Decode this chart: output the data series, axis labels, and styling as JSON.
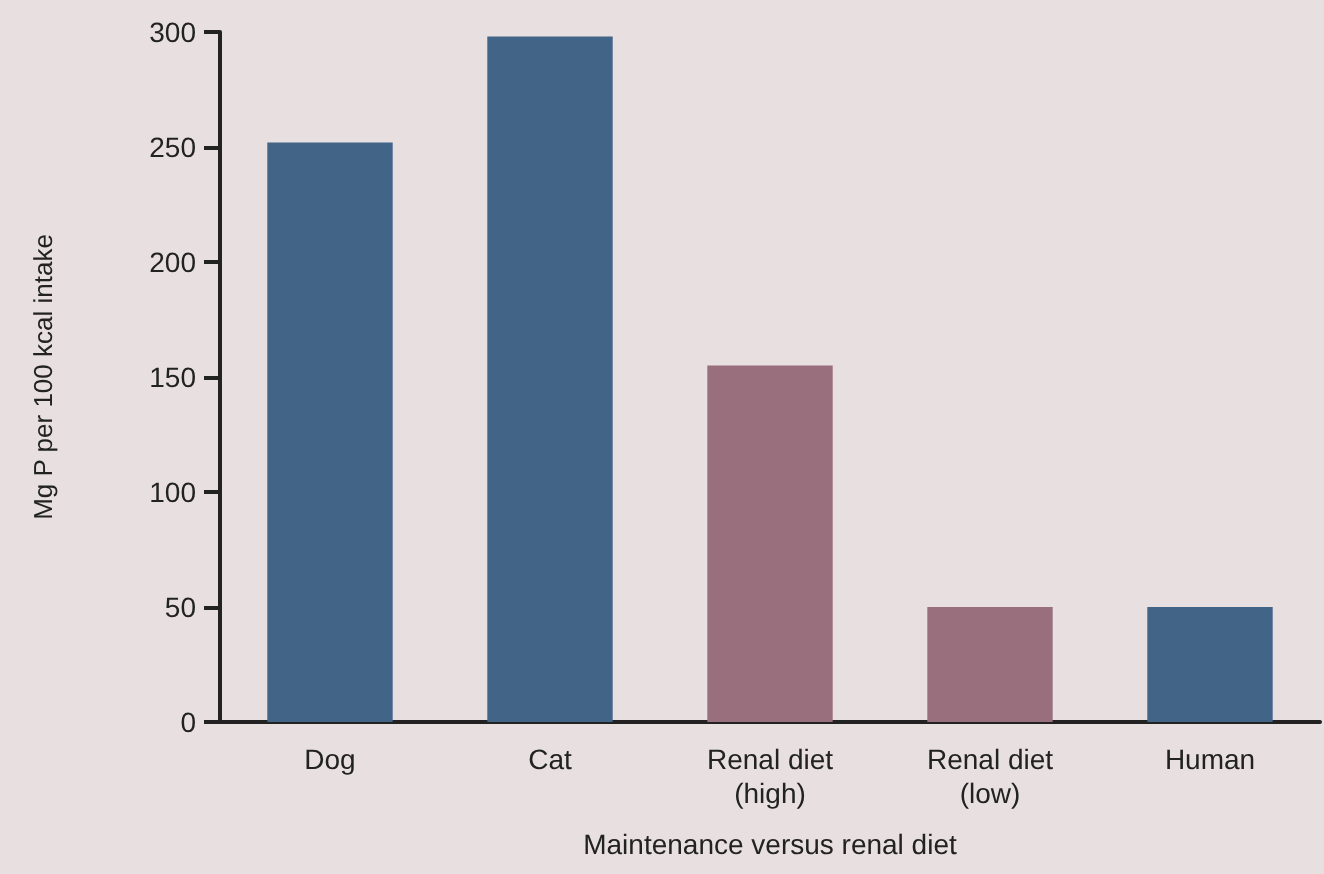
{
  "chart_data": {
    "type": "bar",
    "xlabel": "Maintenance versus renal diet",
    "ylabel": "Mg P per 100 kcal intake",
    "categories": [
      "Dog",
      "Cat",
      "Renal diet\n(high)",
      "Renal diet\n(low)",
      "Human"
    ],
    "values": [
      252,
      298,
      155,
      50,
      50
    ],
    "colors": [
      "#416487",
      "#416487",
      "#9a6f7d",
      "#9a6f7d",
      "#416487"
    ],
    "ylim": [
      0,
      300
    ],
    "yticks": [
      0,
      50,
      100,
      150,
      200,
      250,
      300
    ],
    "grid": false
  }
}
